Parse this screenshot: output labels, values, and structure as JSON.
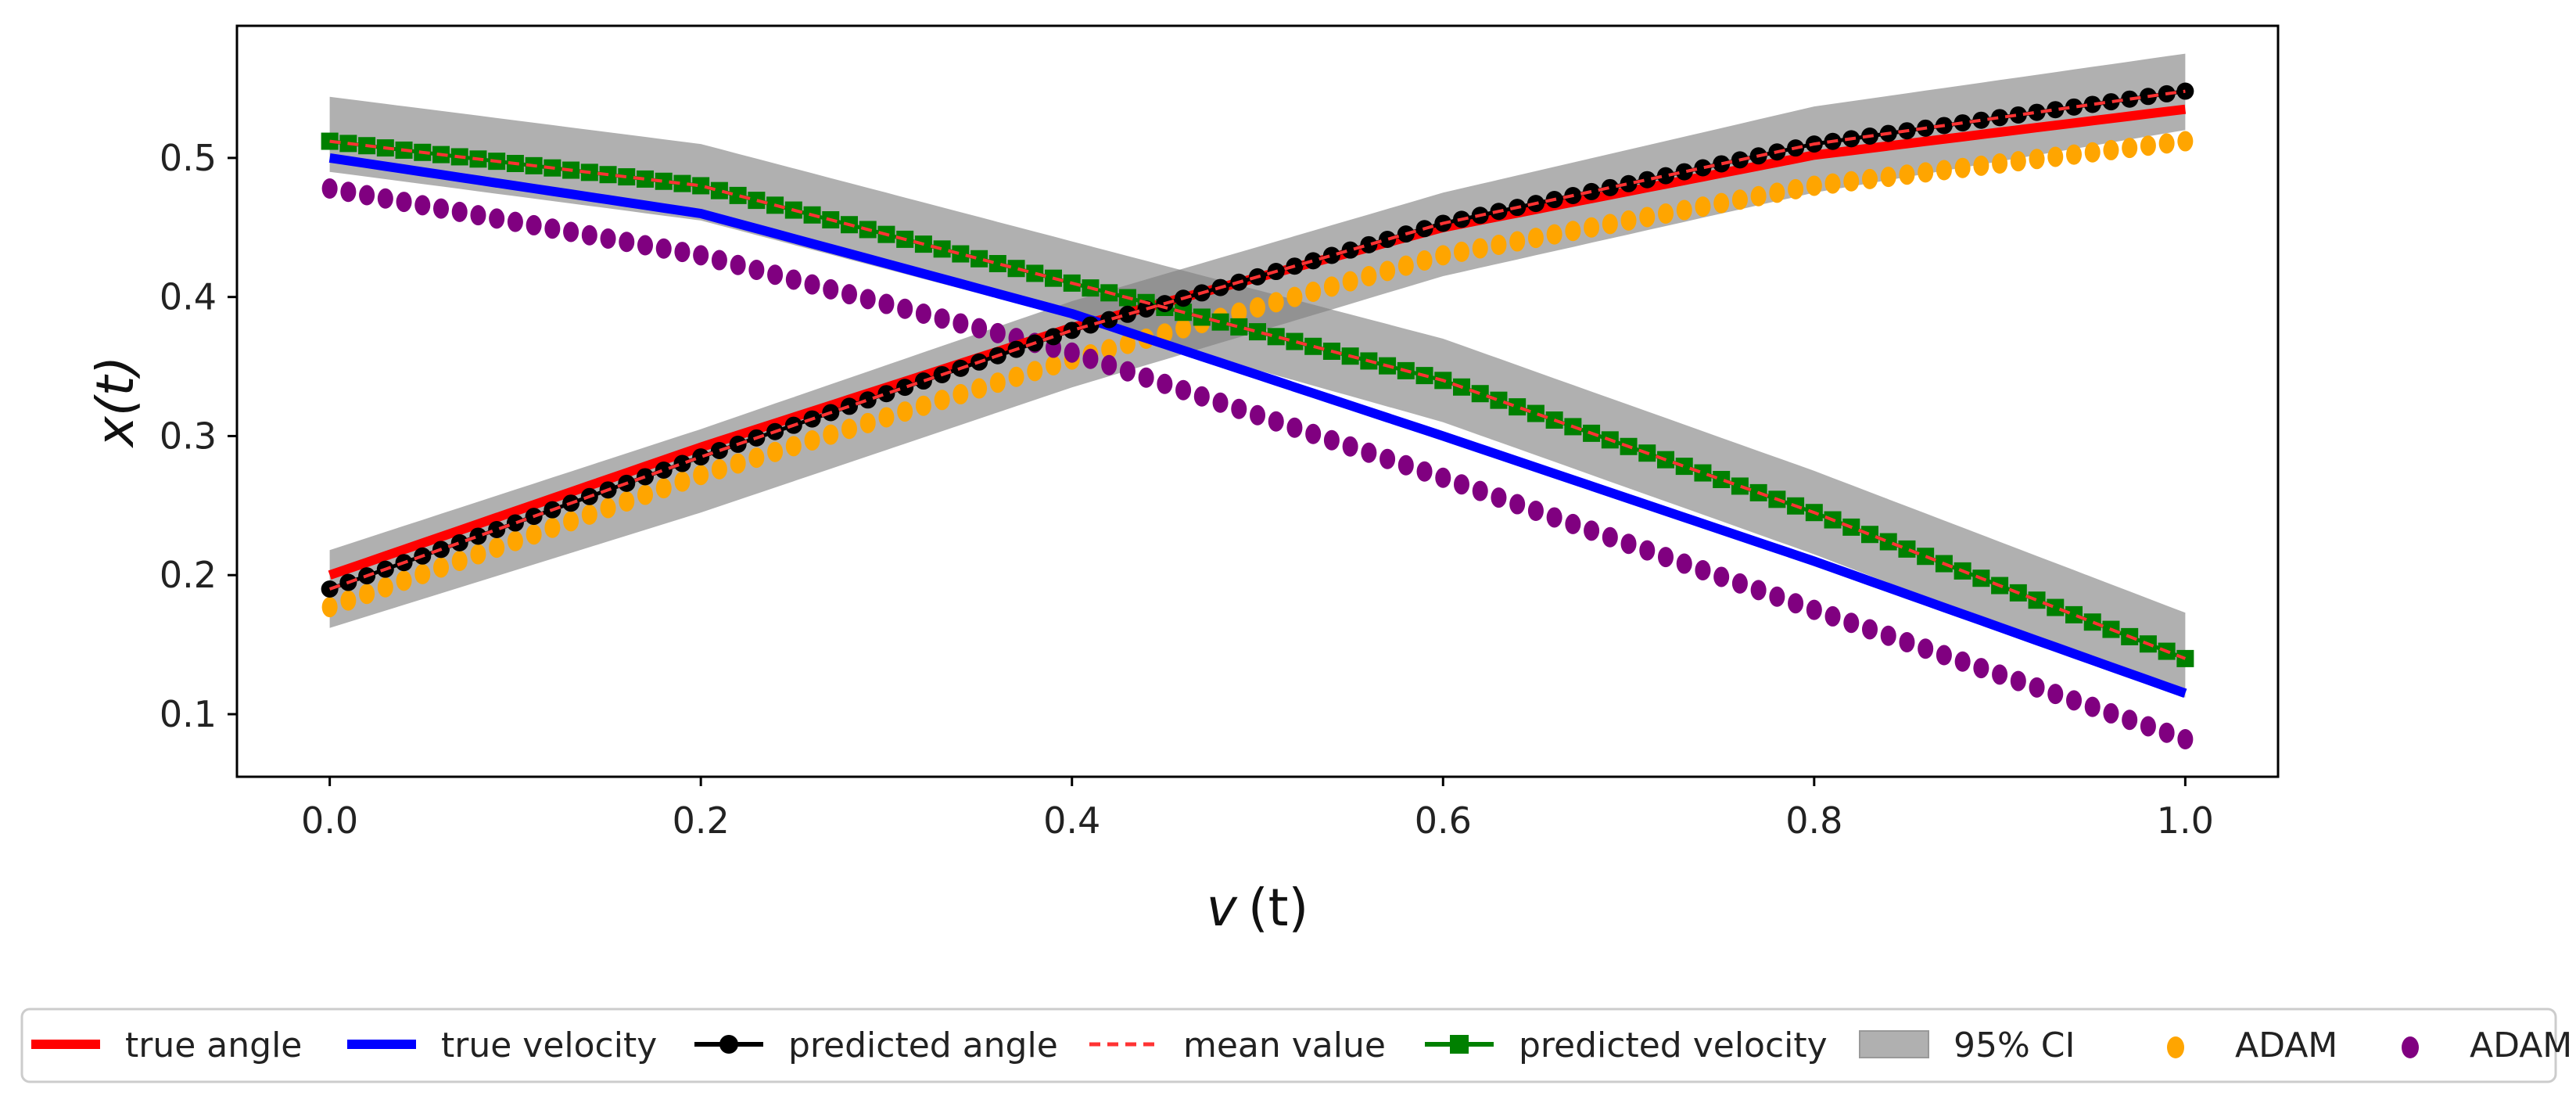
{
  "chart_data": {
    "type": "line",
    "title": "",
    "xlabel_italic": "v",
    "xlabel_rest": "(t)",
    "ylabel": "x(t)",
    "xlim": [
      -0.05,
      1.05
    ],
    "ylim": [
      0.055,
      0.595
    ],
    "xticks": [
      0.0,
      0.2,
      0.4,
      0.6,
      0.8,
      1.0
    ],
    "xtick_labels": [
      "0.0",
      "0.2",
      "0.4",
      "0.6",
      "0.8",
      "1.0"
    ],
    "yticks": [
      0.1,
      0.2,
      0.3,
      0.4,
      0.5
    ],
    "ytick_labels": [
      "0.1",
      "0.2",
      "0.3",
      "0.4",
      "0.5"
    ],
    "n_points": 101,
    "legend_position": "below",
    "series": [
      {
        "name": "95% CI (angle)",
        "kind": "band",
        "color": "#808080",
        "x": [
          0,
          0.2,
          0.4,
          0.6,
          0.8,
          1.0
        ],
        "lower": [
          0.162,
          0.245,
          0.335,
          0.415,
          0.475,
          0.52
        ],
        "upper": [
          0.218,
          0.305,
          0.397,
          0.475,
          0.537,
          0.575
        ]
      },
      {
        "name": "95% CI (velocity)",
        "kind": "band",
        "color": "#808080",
        "x": [
          0,
          0.2,
          0.4,
          0.6,
          0.8,
          1.0
        ],
        "lower": [
          0.49,
          0.455,
          0.385,
          0.31,
          0.215,
          0.112
        ],
        "upper": [
          0.544,
          0.51,
          0.44,
          0.37,
          0.275,
          0.173
        ]
      },
      {
        "name": "true angle",
        "kind": "line",
        "color": "#ff0000",
        "x": [
          0,
          0.2,
          0.4,
          0.6,
          0.8,
          1.0
        ],
        "y": [
          0.2,
          0.292,
          0.378,
          0.45,
          0.502,
          0.535
        ]
      },
      {
        "name": "true velocity",
        "kind": "line",
        "color": "#0000ff",
        "x": [
          0,
          0.2,
          0.4,
          0.6,
          0.8,
          1.0
        ],
        "y": [
          0.5,
          0.46,
          0.388,
          0.3,
          0.21,
          0.115
        ]
      },
      {
        "name": "predicted angle",
        "kind": "markers",
        "marker": "circle",
        "color": "#000000",
        "x": [
          0,
          0.2,
          0.4,
          0.6,
          0.8,
          1.0
        ],
        "y": [
          0.19,
          0.285,
          0.376,
          0.453,
          0.51,
          0.548
        ]
      },
      {
        "name": "mean value",
        "kind": "dashed",
        "color": "#ff3333",
        "x": [
          0,
          0.2,
          0.4,
          0.6,
          0.8,
          1.0
        ],
        "y": [
          0.19,
          0.285,
          0.376,
          0.453,
          0.51,
          0.548
        ]
      },
      {
        "name": "predicted velocity",
        "kind": "markers",
        "marker": "square",
        "color": "#008000",
        "x": [
          0,
          0.2,
          0.4,
          0.6,
          0.8,
          1.0
        ],
        "y": [
          0.512,
          0.48,
          0.41,
          0.34,
          0.245,
          0.14
        ]
      },
      {
        "name": "mean value (velocity)",
        "kind": "dashed",
        "color": "#ff3333",
        "x": [
          0,
          0.2,
          0.4,
          0.6,
          0.8,
          1.0
        ],
        "y": [
          0.512,
          0.48,
          0.41,
          0.34,
          0.245,
          0.14
        ]
      },
      {
        "name": "ADAM (angle)",
        "kind": "markers",
        "marker": "dot",
        "color": "#ffa500",
        "x": [
          0,
          0.2,
          0.4,
          0.6,
          0.8,
          1.0
        ],
        "y": [
          0.177,
          0.272,
          0.355,
          0.43,
          0.48,
          0.512
        ]
      },
      {
        "name": "ADAM (velocity)",
        "kind": "markers",
        "marker": "dot",
        "color": "#800080",
        "x": [
          0,
          0.2,
          0.4,
          0.6,
          0.8,
          1.0
        ],
        "y": [
          0.478,
          0.43,
          0.36,
          0.27,
          0.175,
          0.082
        ]
      }
    ],
    "legend": [
      {
        "label": "true angle",
        "kind": "line",
        "color": "#ff0000"
      },
      {
        "label": "true velocity",
        "kind": "line",
        "color": "#0000ff"
      },
      {
        "label": "predicted angle",
        "kind": "line-circle",
        "color": "#000000"
      },
      {
        "label": "mean value",
        "kind": "dashed",
        "color": "#ff3333"
      },
      {
        "label": "predicted velocity",
        "kind": "line-square",
        "color": "#008000"
      },
      {
        "label": "95% CI",
        "kind": "patch",
        "color": "#b0b0b0"
      },
      {
        "label": "ADAM",
        "kind": "dot",
        "color": "#ffa500"
      },
      {
        "label": "ADAM",
        "kind": "dot",
        "color": "#800080"
      }
    ]
  }
}
